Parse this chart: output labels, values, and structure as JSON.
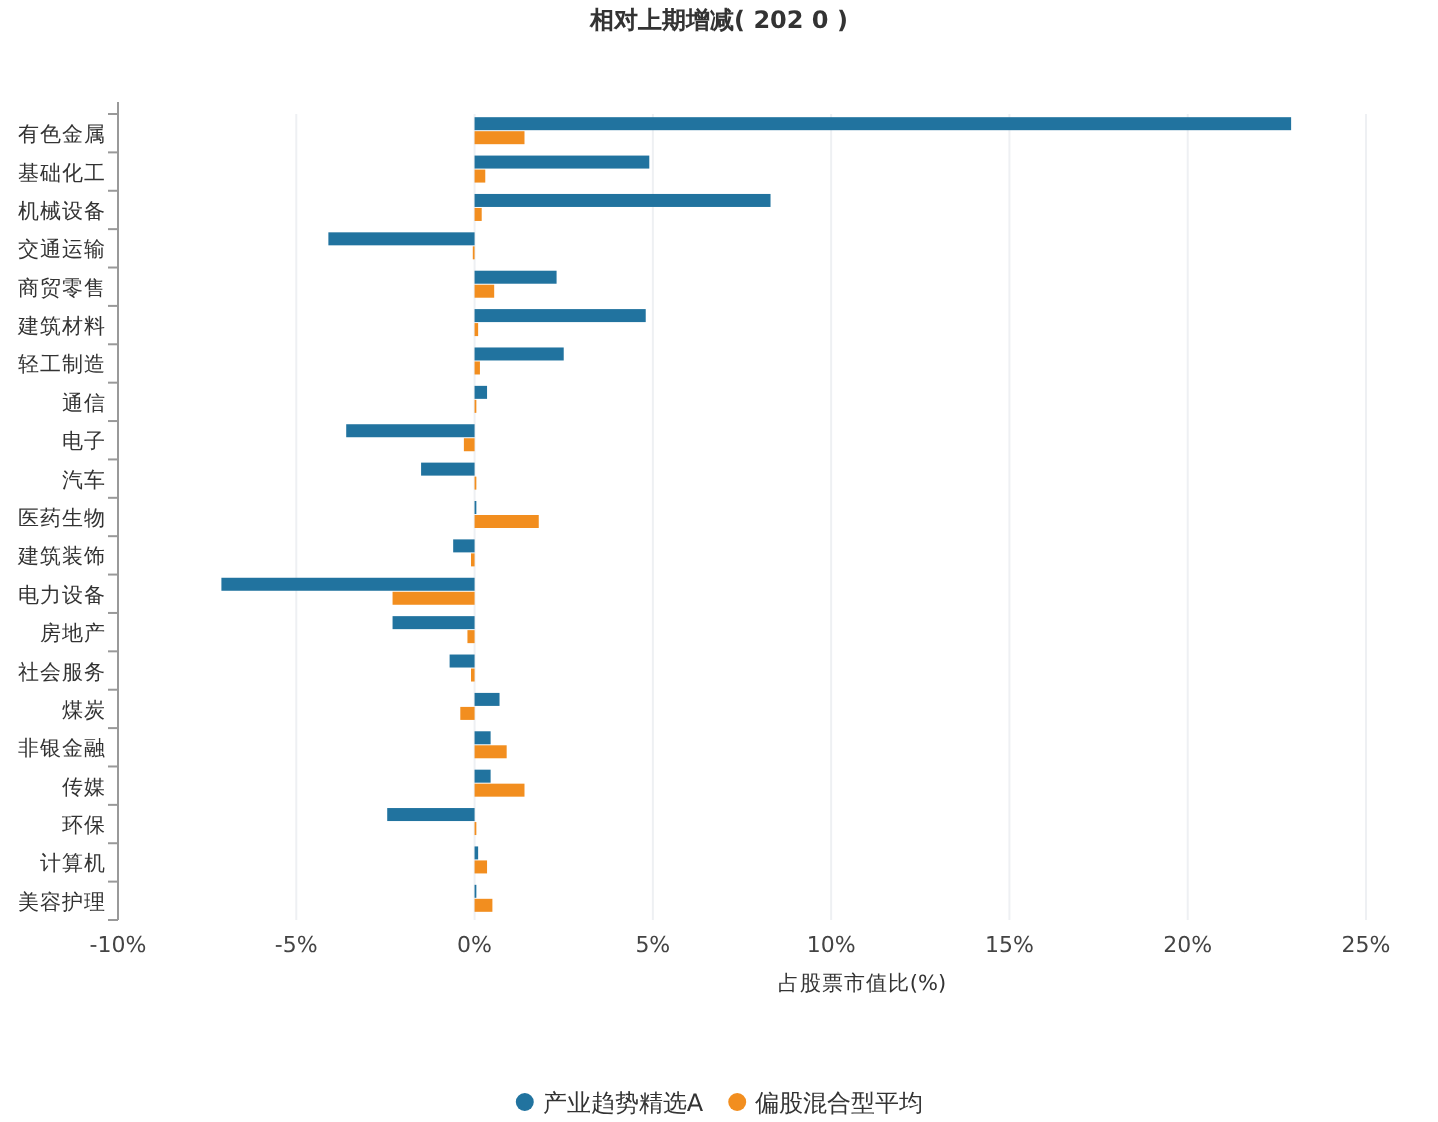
{
  "chart_data": {
    "type": "bar",
    "orientation": "horizontal",
    "title": "相对上期增减( 202 0 )",
    "xlabel": "占股票市值比(%)",
    "categories": [
      "有色金属",
      "基础化工",
      "机械设备",
      "交通运输",
      "商贸零售",
      "建筑材料",
      "轻工制造",
      "通信",
      "电子",
      "汽车",
      "医药生物",
      "建筑装饰",
      "电力设备",
      "房地产",
      "社会服务",
      "煤炭",
      "非银金融",
      "传媒",
      "环保",
      "计算机",
      "美容护理"
    ],
    "series": [
      {
        "name": "产业趋势精选A",
        "color": "#21739f",
        "values": [
          22.9,
          4.9,
          8.3,
          -4.1,
          2.3,
          4.8,
          2.5,
          0.35,
          -3.6,
          -1.5,
          0.05,
          -0.6,
          -7.1,
          -2.3,
          -0.7,
          0.7,
          0.45,
          0.45,
          -2.45,
          0.1,
          0.05
        ]
      },
      {
        "name": "偏股混合型平均",
        "color": "#f28e1f",
        "values": [
          1.4,
          0.3,
          0.2,
          -0.05,
          0.55,
          0.1,
          0.15,
          0.05,
          -0.3,
          0.05,
          1.8,
          -0.1,
          -2.3,
          -0.2,
          -0.1,
          -0.4,
          0.9,
          1.4,
          0.05,
          0.35,
          0.5
        ]
      }
    ],
    "xlim": [
      -10,
      25
    ],
    "xticks": [
      {
        "value": -10,
        "label": "-10%"
      },
      {
        "value": -5,
        "label": "-5%"
      },
      {
        "value": 0,
        "label": "0%"
      },
      {
        "value": 5,
        "label": "5%"
      },
      {
        "value": 10,
        "label": "10%"
      },
      {
        "value": 15,
        "label": "15%"
      },
      {
        "value": 20,
        "label": "20%"
      },
      {
        "value": 25,
        "label": "25%"
      }
    ],
    "grid": "x",
    "legend": "bottom"
  }
}
